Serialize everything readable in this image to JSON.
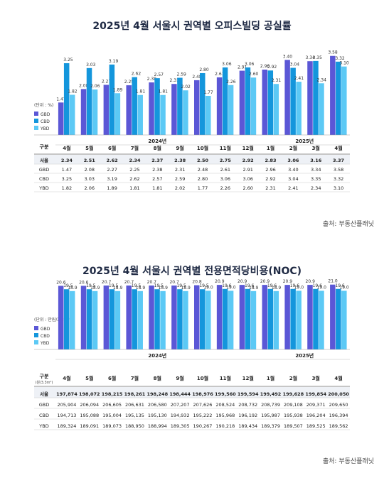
{
  "chart_data": [
    {
      "type": "bar",
      "title": "2025년 4월 서울시 권역별 오피스빌딩 공실률",
      "unit_label": "(단위 : %)",
      "source": "출처: 부동산플래닛",
      "row_header": "구분",
      "years": [
        {
          "label": "2024년",
          "from": 0,
          "to": 8
        },
        {
          "label": "2025년",
          "from": 9,
          "to": 12
        }
      ],
      "categories": [
        "4월",
        "5월",
        "6월",
        "7월",
        "8월",
        "9월",
        "10월",
        "11월",
        "12월",
        "1월",
        "2월",
        "3월",
        "4월"
      ],
      "bar_label_precision": 2,
      "ylim": [
        0,
        3.7
      ],
      "series": [
        {
          "name": "GBD",
          "color": "#5b57d6",
          "values": [
            1.47,
            2.08,
            2.27,
            2.25,
            2.38,
            2.31,
            2.48,
            2.61,
            2.91,
            2.96,
            3.4,
            3.34,
            3.58
          ]
        },
        {
          "name": "CBD",
          "color": "#1496dc",
          "values": [
            3.25,
            3.03,
            3.19,
            2.62,
            2.57,
            2.59,
            2.8,
            3.06,
            3.06,
            2.92,
            3.04,
            3.35,
            3.32
          ]
        },
        {
          "name": "YBD",
          "color": "#5cc9f5",
          "values": [
            1.82,
            2.06,
            1.89,
            1.81,
            1.81,
            2.02,
            1.77,
            2.26,
            2.6,
            2.31,
            2.41,
            2.34,
            3.1
          ]
        }
      ],
      "table": [
        {
          "name": "서울",
          "values": [
            "2.34",
            "2.51",
            "2.62",
            "2.34",
            "2.37",
            "2.38",
            "2.50",
            "2.75",
            "2.92",
            "2.83",
            "3.06",
            "3.16",
            "3.37"
          ]
        },
        {
          "name": "GBD",
          "values": [
            "1.47",
            "2.08",
            "2.27",
            "2.25",
            "2.38",
            "2.31",
            "2.48",
            "2.61",
            "2.91",
            "2.96",
            "3.40",
            "3.34",
            "3.58"
          ]
        },
        {
          "name": "CBD",
          "values": [
            "3.25",
            "3.03",
            "3.19",
            "2.62",
            "2.57",
            "2.59",
            "2.80",
            "3.06",
            "3.06",
            "2.92",
            "3.04",
            "3.35",
            "3.32"
          ]
        },
        {
          "name": "YBD",
          "values": [
            "1.82",
            "2.06",
            "1.89",
            "1.81",
            "1.81",
            "2.02",
            "1.77",
            "2.26",
            "2.60",
            "2.31",
            "2.41",
            "2.34",
            "3.10"
          ]
        }
      ]
    },
    {
      "type": "bar",
      "title": "2025년 4월 서울시 권역별 전용면적당비용(NOC)",
      "unit_label": "(단위 : 만원/3.3m²)",
      "source": "출처: 부동산플래닛",
      "row_header": "구분",
      "row_subheader": "(원/3.3m²)",
      "years": [
        {
          "label": "2024년",
          "from": 0,
          "to": 8
        },
        {
          "label": "2025년",
          "from": 9,
          "to": 12
        }
      ],
      "categories": [
        "4월",
        "5월",
        "6월",
        "7월",
        "8월",
        "9월",
        "10월",
        "11월",
        "12월",
        "1월",
        "2월",
        "3월",
        "4월"
      ],
      "bar_label_precision": 1,
      "ylim": [
        0,
        23
      ],
      "series": [
        {
          "name": "GBD",
          "color": "#5b57d6",
          "values": [
            20.6,
            20.6,
            20.7,
            20.7,
            20.7,
            20.7,
            20.8,
            20.9,
            20.9,
            20.9,
            20.9,
            20.9,
            21.0
          ]
        },
        {
          "name": "CBD",
          "color": "#1496dc",
          "values": [
            19.5,
            19.5,
            19.5,
            19.5,
            19.5,
            19.5,
            19.5,
            19.6,
            19.6,
            19.6,
            19.6,
            19.6,
            19.6
          ]
        },
        {
          "name": "YBD",
          "color": "#5cc9f5",
          "values": [
            18.9,
            18.9,
            18.9,
            18.9,
            18.9,
            18.9,
            19.0,
            19.0,
            18.9,
            18.9,
            19.0,
            19.0,
            19.0
          ]
        }
      ],
      "table": [
        {
          "name": "서울",
          "values": [
            "197,874",
            "198,072",
            "198,215",
            "198,261",
            "198,248",
            "198,444",
            "198,976",
            "199,560",
            "199,594",
            "199,492",
            "199,628",
            "199,854",
            "200,050"
          ]
        },
        {
          "name": "GBD",
          "values": [
            "205,904",
            "206,094",
            "206,605",
            "206,631",
            "206,580",
            "207,207",
            "207,626",
            "208,524",
            "208,732",
            "208,739",
            "209,108",
            "209,371",
            "209,650"
          ]
        },
        {
          "name": "CBD",
          "values": [
            "194,713",
            "195,088",
            "195,004",
            "195,135",
            "195,130",
            "194,932",
            "195,222",
            "195,968",
            "196,192",
            "195,987",
            "195,938",
            "196,204",
            "196,394"
          ]
        },
        {
          "name": "YBD",
          "values": [
            "189,324",
            "189,091",
            "189,073",
            "188,950",
            "188,994",
            "189,305",
            "190,267",
            "190,218",
            "189,434",
            "189,379",
            "189,507",
            "189,525",
            "189,562"
          ]
        }
      ]
    }
  ]
}
